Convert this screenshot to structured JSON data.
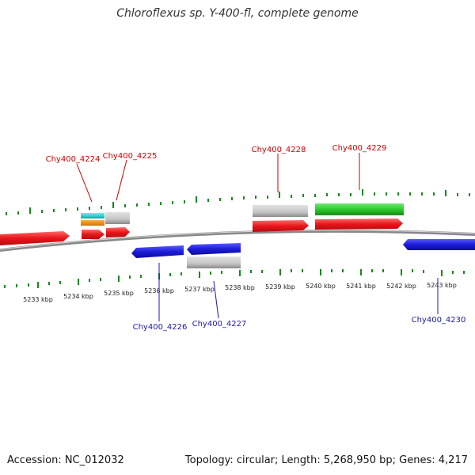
{
  "title": "Chloroflexus sp. Y-400-fl, complete genome",
  "footer": {
    "accession": "Accession: NC_012032",
    "summary": "Topology: circular; Length: 5,268,950 bp; Genes: 4,217"
  },
  "colors": {
    "forward_gene": "#e8161b",
    "reverse_gene": "#1c1cd8",
    "rna_gray": "#c4c4c4",
    "green_feature": "#2ec92e",
    "cyan_feature": "#1ec8d0",
    "orange_feature": "#f08a10",
    "tick_green": "#1a8a1a",
    "backbone": "#888888",
    "forward_label": "#cc0000",
    "reverse_label": "#1a1aa8"
  },
  "axis": {
    "tick_labels": [
      "5233 kbp",
      "5234 kbp",
      "5235 kbp",
      "5236 kbp",
      "5237 kbp",
      "5238 kbp",
      "5239 kbp",
      "5240 kbp",
      "5241 kbp",
      "5242 kbp",
      "5243 kbp"
    ]
  },
  "genes": {
    "forward": [
      "Chy400_4224",
      "Chy400_4225",
      "Chy400_4228",
      "Chy400_4229"
    ],
    "reverse": [
      "Chy400_4226",
      "Chy400_4227",
      "Chy400_4230"
    ]
  }
}
